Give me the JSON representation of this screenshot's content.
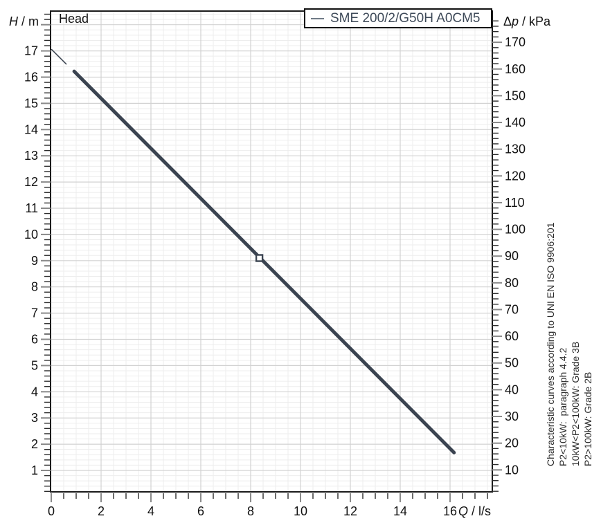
{
  "colors": {
    "curve": "#3a4350",
    "marker_fill": "#ffffff",
    "grid_major": "#d2d2d2",
    "grid_minor": "#ededed",
    "spine": "#1a1a1a",
    "tick_major": "#8a8a8a",
    "tick_minor": "#2b2b2b",
    "tick_label": "#111111",
    "legend_text": "#3e4a59",
    "legend_line": "#707b87"
  },
  "side_notes": [
    "Characteristic curves according to UNI EN ISO 9906:201",
    "P2<10kW:  paragraph 4.4.2",
    "10kW<P2<100kW: Grade 3B",
    "P2>100kW: Grade 2B"
  ],
  "chart_data": {
    "type": "line",
    "title_annotation": "Head",
    "legend": {
      "label": "SME 200/2/G50H A0CM5",
      "position": "top-right"
    },
    "axes": {
      "left": {
        "label": "H / m",
        "parts": {
          "variable": "H",
          "suffix": " / m"
        },
        "min": 0.18,
        "max": 18.52,
        "major_ticks": [
          1,
          2,
          3,
          4,
          5,
          6,
          7,
          8,
          9,
          10,
          11,
          12,
          13,
          14,
          15,
          16,
          17
        ],
        "major_gridlines": [
          1,
          2,
          3,
          4,
          5,
          6,
          7,
          8,
          9,
          10,
          11,
          12,
          13,
          14,
          15,
          16,
          17,
          18
        ],
        "minor_step": 0.2
      },
      "right": {
        "label": "Δp / kPa",
        "parts": {
          "prefix": "Δ",
          "variable": "p",
          "suffix": " / kPa"
        },
        "major_ticks": [
          10,
          20,
          30,
          40,
          50,
          60,
          70,
          80,
          90,
          100,
          110,
          120,
          130,
          140,
          150,
          160,
          170
        ],
        "minor_step": 2,
        "kpa_per_m": 9.81
      },
      "bottom": {
        "label": "Q / l/s",
        "parts": {
          "variable": "Q",
          "suffix": " / l/s"
        },
        "min": 0,
        "max": 17.7,
        "major_ticks": [
          0,
          2,
          4,
          6,
          8,
          10,
          12,
          14,
          16
        ],
        "minor_step": 0.5
      }
    },
    "grid": {
      "major": true,
      "minor": true
    },
    "series": [
      {
        "name": "SME 200/2/G50H A0CM5",
        "color": "#3a4350",
        "segments": [
          {
            "style": "thin",
            "width": 1.5,
            "points": [
              [
                0.02,
                17.05
              ],
              [
                0.6,
                16.5
              ]
            ]
          },
          {
            "style": "thick",
            "width": 5,
            "points": [
              [
                0.92,
                16.22
              ],
              [
                16.16,
                1.68
              ]
            ]
          }
        ],
        "duty_point": {
          "q": 8.35,
          "h": 9.1,
          "dp_kpa": 89.3,
          "marker": "open-square"
        }
      }
    ]
  }
}
